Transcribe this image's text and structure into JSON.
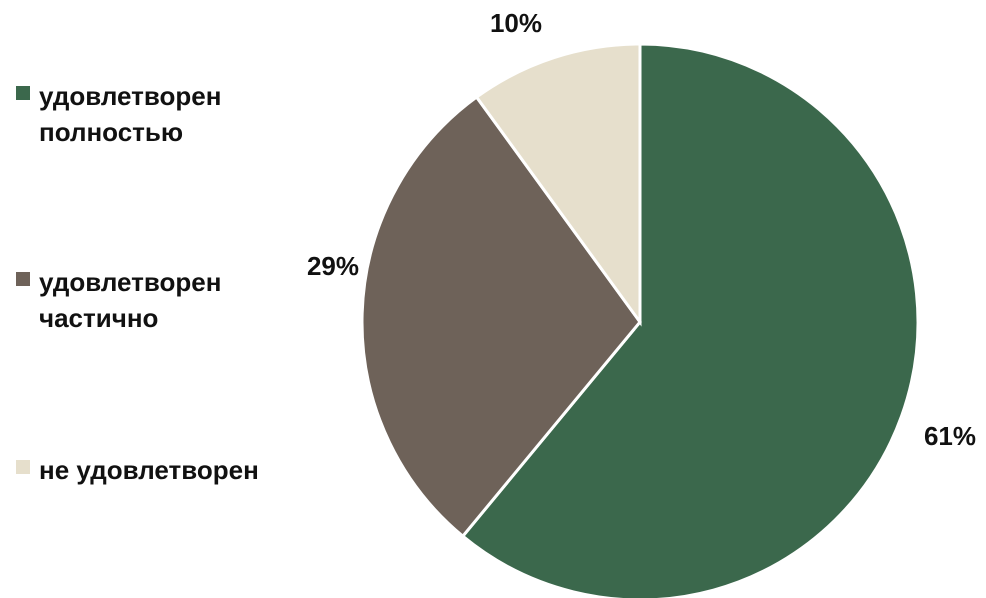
{
  "chart_data": {
    "type": "pie",
    "categories": [
      "удовлетворен полностью",
      "удовлетворен частично",
      "не удовлетворен"
    ],
    "values": [
      61,
      29,
      10
    ],
    "value_labels": [
      "61%",
      "29%",
      "10%"
    ],
    "colors": [
      "#3b684c",
      "#6e6259",
      "#e6dfcc"
    ]
  }
}
